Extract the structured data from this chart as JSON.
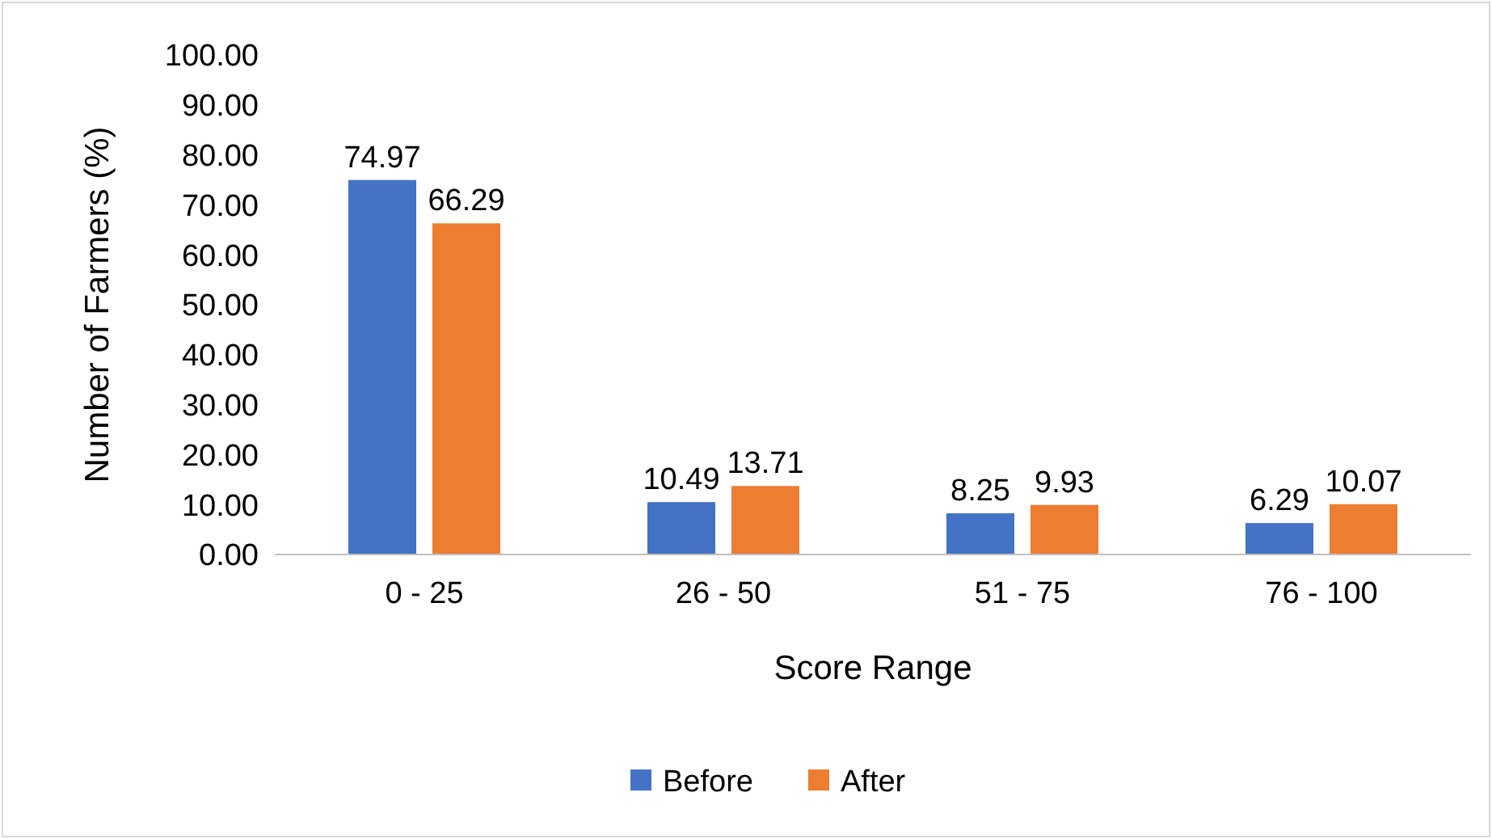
{
  "chart_data": {
    "type": "bar",
    "xlabel": "Score Range",
    "ylabel": "Number of Farmers (%)",
    "categories": [
      "0 - 25",
      "26 - 50",
      "51 - 75",
      "76 - 100"
    ],
    "series": [
      {
        "name": "Before",
        "color": "#4472c4",
        "values": [
          74.97,
          10.49,
          8.25,
          6.29
        ]
      },
      {
        "name": "After",
        "color": "#ed7d31",
        "values": [
          66.29,
          13.71,
          9.93,
          10.07
        ]
      }
    ],
    "ylim": [
      0,
      100
    ],
    "yticks": [
      {
        "value": 0,
        "label": "0.00"
      },
      {
        "value": 10,
        "label": "10.00"
      },
      {
        "value": 20,
        "label": "20.00"
      },
      {
        "value": 30,
        "label": "30.00"
      },
      {
        "value": 40,
        "label": "40.00"
      },
      {
        "value": 50,
        "label": "50.00"
      },
      {
        "value": 60,
        "label": "60.00"
      },
      {
        "value": 70,
        "label": "70.00"
      },
      {
        "value": 80,
        "label": "80.00"
      },
      {
        "value": 90,
        "label": "90.00"
      },
      {
        "value": 100,
        "label": "100.00"
      }
    ],
    "data_labels": true,
    "grid": false,
    "legend": "bottom"
  }
}
